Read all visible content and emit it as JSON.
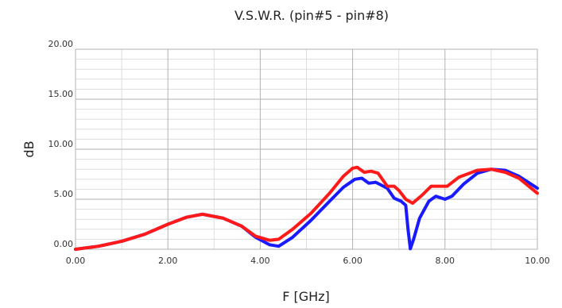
{
  "chart_data": {
    "type": "line",
    "title": "V.S.W.R. (pin#5 - pin#8)",
    "xlabel": "F [GHz]",
    "ylabel": "dB",
    "xlim": [
      0,
      10
    ],
    "ylim": [
      0,
      20
    ],
    "x_ticks": [
      "0.00",
      "2.00",
      "4.00",
      "6.00",
      "8.00",
      "10.00"
    ],
    "y_ticks": [
      "0.00",
      "5.00",
      "10.00",
      "15.00",
      "20.00"
    ],
    "grid": true,
    "legend": "none",
    "series": [
      {
        "color": "#1a1aff",
        "points": [
          [
            0,
            0
          ],
          [
            0.5,
            0.3
          ],
          [
            1,
            0.8
          ],
          [
            1.5,
            1.5
          ],
          [
            2,
            2.5
          ],
          [
            2.4,
            3.2
          ],
          [
            2.75,
            3.5
          ],
          [
            3.2,
            3.1
          ],
          [
            3.6,
            2.3
          ],
          [
            3.9,
            1.2
          ],
          [
            4.2,
            0.45
          ],
          [
            4.4,
            0.3
          ],
          [
            4.7,
            1.2
          ],
          [
            5.1,
            2.9
          ],
          [
            5.5,
            4.8
          ],
          [
            5.8,
            6.2
          ],
          [
            6.05,
            7.0
          ],
          [
            6.2,
            7.1
          ],
          [
            6.35,
            6.6
          ],
          [
            6.5,
            6.7
          ],
          [
            6.75,
            6.1
          ],
          [
            6.9,
            5.1
          ],
          [
            7.05,
            4.8
          ],
          [
            7.15,
            4.4
          ],
          [
            7.2,
            2.0
          ],
          [
            7.25,
            0.05
          ],
          [
            7.32,
            1.0
          ],
          [
            7.45,
            3.1
          ],
          [
            7.65,
            4.8
          ],
          [
            7.8,
            5.3
          ],
          [
            8.0,
            5.0
          ],
          [
            8.15,
            5.3
          ],
          [
            8.4,
            6.5
          ],
          [
            8.7,
            7.6
          ],
          [
            9.0,
            8.0
          ],
          [
            9.3,
            7.9
          ],
          [
            9.6,
            7.3
          ],
          [
            10,
            6.1
          ]
        ]
      },
      {
        "color": "#ff1a1a",
        "points": [
          [
            0,
            0
          ],
          [
            0.5,
            0.3
          ],
          [
            1,
            0.8
          ],
          [
            1.5,
            1.5
          ],
          [
            2,
            2.5
          ],
          [
            2.4,
            3.2
          ],
          [
            2.75,
            3.5
          ],
          [
            3.2,
            3.1
          ],
          [
            3.6,
            2.3
          ],
          [
            3.9,
            1.3
          ],
          [
            4.2,
            0.9
          ],
          [
            4.4,
            1.0
          ],
          [
            4.7,
            2.0
          ],
          [
            5.1,
            3.6
          ],
          [
            5.5,
            5.6
          ],
          [
            5.8,
            7.3
          ],
          [
            6.0,
            8.1
          ],
          [
            6.1,
            8.2
          ],
          [
            6.25,
            7.7
          ],
          [
            6.4,
            7.8
          ],
          [
            6.55,
            7.6
          ],
          [
            6.75,
            6.3
          ],
          [
            6.9,
            6.3
          ],
          [
            7.0,
            5.9
          ],
          [
            7.15,
            5.0
          ],
          [
            7.3,
            4.6
          ],
          [
            7.5,
            5.4
          ],
          [
            7.7,
            6.3
          ],
          [
            7.9,
            6.3
          ],
          [
            8.05,
            6.3
          ],
          [
            8.3,
            7.2
          ],
          [
            8.7,
            7.9
          ],
          [
            9.0,
            8.0
          ],
          [
            9.3,
            7.7
          ],
          [
            9.6,
            7.1
          ],
          [
            10,
            5.6
          ]
        ]
      }
    ]
  }
}
